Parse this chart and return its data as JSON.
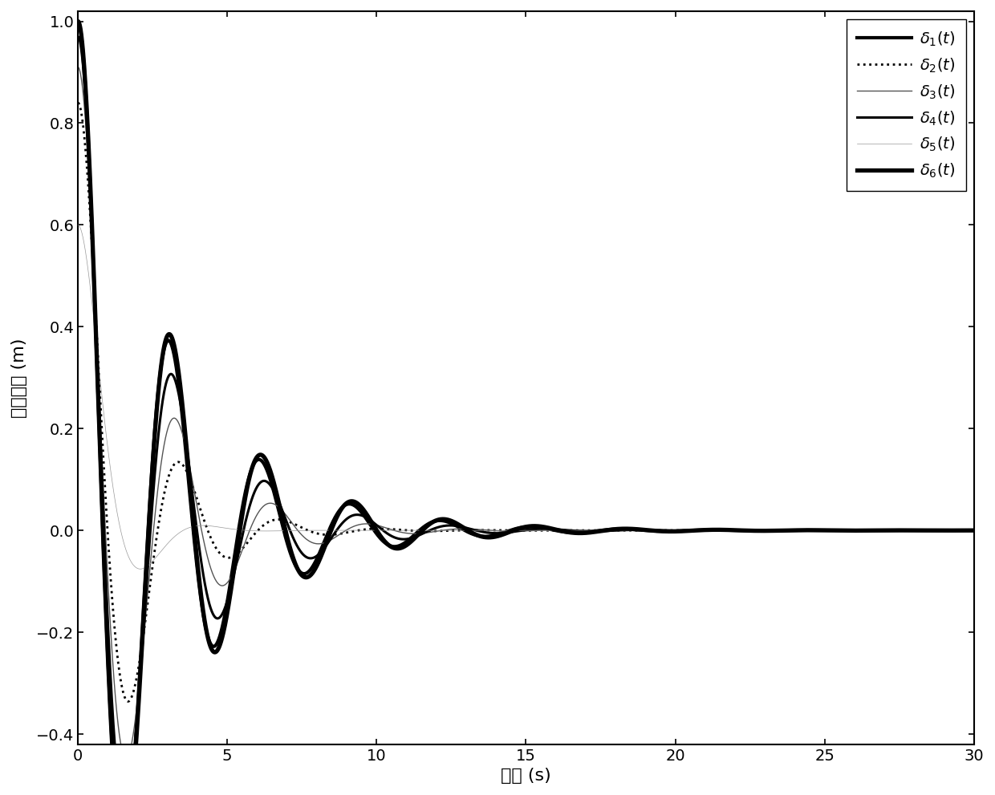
{
  "xlabel": "时间 (s)",
  "ylabel": "间距误差 (m)",
  "xlim": [
    0,
    30
  ],
  "ylim": [
    -0.42,
    1.02
  ],
  "xticks": [
    0,
    5,
    10,
    15,
    20,
    25,
    30
  ],
  "yticks": [
    -0.4,
    -0.2,
    0.0,
    0.2,
    0.4,
    0.6,
    0.8,
    1.0
  ],
  "legend_labels": [
    "$\\delta_1(t)$",
    "$\\delta_2(t)$",
    "$\\delta_3(t)$",
    "$\\delta_4(t)$",
    "$\\delta_5(t)$",
    "$\\delta_6(t)$"
  ],
  "line_styles": [
    "-",
    ":",
    "-",
    "-",
    "-",
    "-"
  ],
  "line_widths": [
    3.0,
    2.0,
    1.0,
    2.2,
    0.5,
    3.8
  ],
  "line_colors": [
    "#000000",
    "#000000",
    "#555555",
    "#000000",
    "#999999",
    "#000000"
  ],
  "background_color": "#ffffff",
  "tick_labelsize": 14,
  "label_fontsize": 16,
  "legend_fontsize": 14
}
